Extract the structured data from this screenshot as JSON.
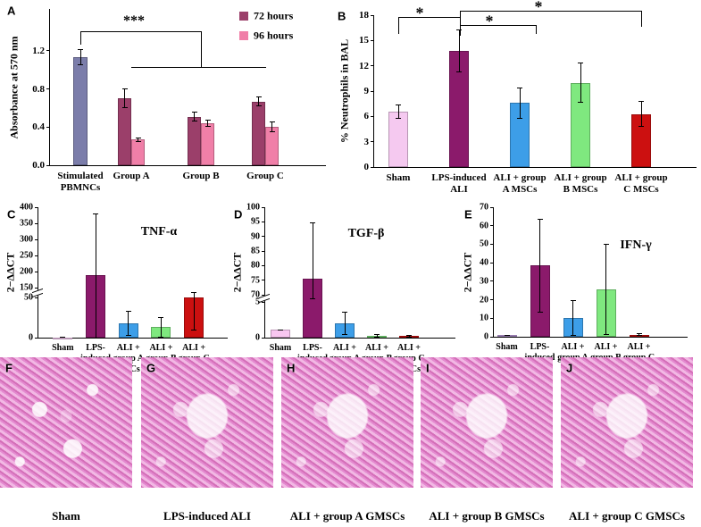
{
  "chart_data": [
    {
      "panel": "A",
      "type": "bar",
      "ylabel": "Absorbance at 570 nm",
      "categories": [
        "Stimulated\nPBMNCs",
        "Group A",
        "Group B",
        "Group C"
      ],
      "control_values": [
        1.13,
        null,
        null,
        null
      ],
      "control_errors": [
        0.08,
        null,
        null,
        null
      ],
      "control_color": "#7b7daa",
      "series": [
        {
          "name": "72 hours",
          "color": "#9b3f6a",
          "values": [
            null,
            0.7,
            0.51,
            0.67
          ],
          "errors": [
            null,
            0.1,
            0.05,
            0.05
          ]
        },
        {
          "name": "96 hours",
          "color": "#f07fa8",
          "values": [
            null,
            0.27,
            0.44,
            0.4
          ],
          "errors": [
            null,
            0.02,
            0.03,
            0.05
          ]
        }
      ],
      "ylim": [
        0,
        1.64
      ],
      "yticks": [
        {
          "value": 0,
          "label": "0.0"
        },
        0.4,
        0.8,
        1.2
      ],
      "legend": "upper right",
      "annotations": [
        "***"
      ]
    },
    {
      "panel": "B",
      "type": "bar",
      "ylabel": "% Neutrophils in BAL",
      "categories": [
        "Sham",
        "LPS-induced\nALI",
        "ALI + group\nA MSCs",
        "ALI + group\nB MSCs",
        "ALI + group\nC MSCs"
      ],
      "values": [
        6.6,
        13.8,
        7.6,
        10.0,
        6.3
      ],
      "errors": [
        0.8,
        2.5,
        1.8,
        2.3,
        1.5
      ],
      "colors": [
        "#f5c9f0",
        "#8b1a6b",
        "#3d9ee8",
        "#7fe87f",
        "#cc1010"
      ],
      "ylim": [
        0,
        18
      ],
      "yticks": [
        0,
        3,
        6,
        9,
        12,
        15,
        18
      ],
      "annotations": [
        "*",
        "*",
        "*"
      ]
    },
    {
      "panel": "C",
      "type": "bar",
      "title": "TNF-α",
      "ylabel": "2−ΔΔCT",
      "categories": [
        "Sham",
        "LPS-\ninduced\nALI",
        "ALI +\ngroup A\nMSCs",
        "ALI +\ngroup B\nMSCs",
        "ALI +\ngroup C\nMSCs"
      ],
      "values": [
        0.5,
        190,
        18,
        13,
        50
      ],
      "errors": [
        0,
        190,
        15,
        12,
        40
      ],
      "colors": [
        "#f5c9f0",
        "#8b1a6b",
        "#3d9ee8",
        "#7fe87f",
        "#cc1010"
      ],
      "ylim": [
        0,
        400
      ],
      "ybreak": [
        50,
        150
      ],
      "yticks": [
        0,
        50,
        150,
        200,
        250,
        300,
        350,
        400
      ]
    },
    {
      "panel": "D",
      "type": "bar",
      "title": "TGF-β",
      "ylabel": "2−ΔΔCT",
      "categories": [
        "Sham",
        "LPS-\ninduced\nALI",
        "ALI +\ngroup A\nMSCs",
        "ALI +\ngroup B\nMSCs",
        "ALI +\ngroup C\nMSCs"
      ],
      "values": [
        1.1,
        75.5,
        2.0,
        0.3,
        0.2
      ],
      "errors": [
        0,
        19,
        1.6,
        0.2,
        0.1
      ],
      "colors": [
        "#f8c6f0",
        "#8b1a6b",
        "#3d9ee8",
        "#7fe87f",
        "#cc1010"
      ],
      "ylim": [
        0,
        100
      ],
      "ybreak": [
        5,
        70
      ],
      "yticks": [
        0,
        5,
        70,
        75,
        80,
        85,
        90,
        95,
        100
      ]
    },
    {
      "panel": "E",
      "type": "bar",
      "title": "IFN-γ",
      "ylabel": "2−ΔΔCT",
      "categories": [
        "Sham",
        "LPS-\ninduced\nALI",
        "ALI +\ngroup A\nMSCs",
        "ALI +\ngroup B\nMSCs",
        "ALI +\ngroup C\nMSCs"
      ],
      "values": [
        0.8,
        38.5,
        10.2,
        25.5,
        1.0
      ],
      "errors": [
        0,
        25,
        9.5,
        24.5,
        0.5
      ],
      "colors": [
        "#c9a6e8",
        "#8b1a6b",
        "#3d9ee8",
        "#7fe87f",
        "#cc1010"
      ],
      "ylim": [
        0,
        70
      ],
      "yticks": [
        0,
        10,
        20,
        30,
        40,
        50,
        60,
        70
      ]
    }
  ],
  "images": [
    {
      "label": "F",
      "caption": "Sham"
    },
    {
      "label": "G",
      "caption": "LPS-induced ALI"
    },
    {
      "label": "H",
      "caption": "ALI + group A GMSCs"
    },
    {
      "label": "I",
      "caption": "ALI + group B GMSCs"
    },
    {
      "label": "J",
      "caption": "ALI + group C GMSCs"
    }
  ]
}
